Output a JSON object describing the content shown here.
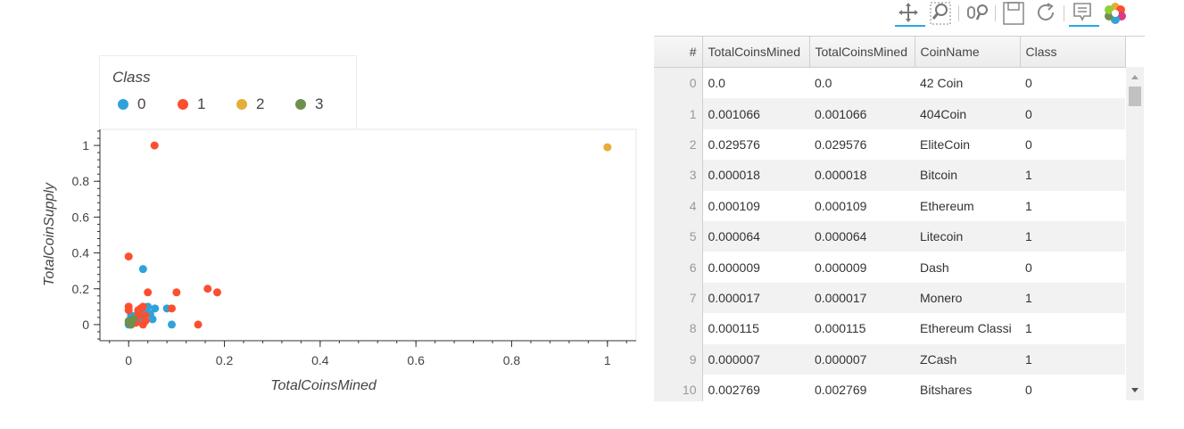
{
  "toolbar": {
    "tools": [
      {
        "name": "pan-tool",
        "icon": "pan-icon",
        "active": true
      },
      {
        "name": "box-zoom-tool",
        "icon": "box-zoom-icon",
        "active": false
      },
      {
        "name": "wheel-zoom-tool",
        "icon": "wheel-zoom-icon",
        "active": false
      },
      {
        "name": "save-tool",
        "icon": "save-icon",
        "active": false
      },
      {
        "name": "reset-tool",
        "icon": "reset-icon",
        "active": false
      },
      {
        "name": "hover-tool",
        "icon": "hover-icon",
        "active": true
      },
      {
        "name": "bokeh-logo",
        "icon": "bokeh-logo-icon",
        "active": false
      }
    ],
    "accent_color": "#26aae1"
  },
  "legend": {
    "title": "Class",
    "items": [
      {
        "label": "0",
        "color": "#30a2da"
      },
      {
        "label": "1",
        "color": "#fc4f30"
      },
      {
        "label": "2",
        "color": "#e5ae38"
      },
      {
        "label": "3",
        "color": "#6d904f"
      }
    ]
  },
  "chart_data": {
    "type": "scatter",
    "xlabel": "TotalCoinsMined",
    "ylabel": "TotalCoinSupply",
    "xlim": [
      -0.06,
      1.06
    ],
    "ylim": [
      -0.09,
      1.09
    ],
    "x_ticks": [
      "0",
      "0.2",
      "0.4",
      "0.6",
      "0.8",
      "1"
    ],
    "y_ticks": [
      "0",
      "0.2",
      "0.4",
      "0.6",
      "0.8",
      "1"
    ],
    "grid": false,
    "legend_position": "top-left",
    "series": [
      {
        "name": "0",
        "color": "#30a2da",
        "points": [
          [
            0,
            0
          ],
          [
            0.001,
            0.001
          ],
          [
            0.03,
            0.03
          ],
          [
            0.03,
            0.31
          ],
          [
            0.005,
            0.05
          ],
          [
            0.015,
            0.05
          ],
          [
            0.02,
            0.03
          ],
          [
            0.035,
            0.09
          ],
          [
            0.04,
            0.1
          ],
          [
            0.045,
            0.06
          ],
          [
            0.05,
            0.03
          ],
          [
            0.055,
            0.09
          ],
          [
            0.08,
            0.09
          ],
          [
            0.09,
            0.0
          ],
          [
            0.025,
            0.08
          ],
          [
            0.01,
            0.02
          ]
        ]
      },
      {
        "name": "1",
        "color": "#fc4f30",
        "points": [
          [
            0.054,
            1.0
          ],
          [
            0,
            0.38
          ],
          [
            0,
            0.1
          ],
          [
            0,
            0.08
          ],
          [
            0.01,
            0.02
          ],
          [
            0.02,
            0.05
          ],
          [
            0.025,
            0.09
          ],
          [
            0.03,
            0.1
          ],
          [
            0.04,
            0.18
          ],
          [
            0.03,
            0.0
          ],
          [
            0.035,
            0.02
          ],
          [
            0.09,
            0.09
          ],
          [
            0.1,
            0.18
          ],
          [
            0.165,
            0.2
          ],
          [
            0.185,
            0.18
          ],
          [
            0.145,
            0.0
          ],
          [
            0.02,
            0.08
          ],
          [
            0.005,
            0.0
          ],
          [
            0.035,
            0.05
          ],
          [
            0.015,
            0.01
          ]
        ]
      },
      {
        "name": "2",
        "color": "#e5ae38",
        "points": [
          [
            1.0,
            0.99
          ]
        ]
      },
      {
        "name": "3",
        "color": "#6d904f",
        "points": [
          [
            0,
            0.01
          ],
          [
            0,
            0.02
          ],
          [
            0.005,
            0.0
          ],
          [
            0.01,
            0.03
          ]
        ]
      }
    ]
  },
  "table": {
    "columns": [
      "#",
      "TotalCoinsMined",
      "TotalCoinsMined",
      "CoinName",
      "Class"
    ],
    "rows": [
      [
        "0",
        "0.0",
        "0.0",
        "42 Coin",
        "0"
      ],
      [
        "1",
        "0.001066",
        "0.001066",
        "404Coin",
        "0"
      ],
      [
        "2",
        "0.029576",
        "0.029576",
        "EliteCoin",
        "0"
      ],
      [
        "3",
        "0.000018",
        "0.000018",
        "Bitcoin",
        "1"
      ],
      [
        "4",
        "0.000109",
        "0.000109",
        "Ethereum",
        "1"
      ],
      [
        "5",
        "0.000064",
        "0.000064",
        "Litecoin",
        "1"
      ],
      [
        "6",
        "0.000009",
        "0.000009",
        "Dash",
        "0"
      ],
      [
        "7",
        "0.000017",
        "0.000017",
        "Monero",
        "1"
      ],
      [
        "8",
        "0.000115",
        "0.000115",
        "Ethereum Classi",
        "1"
      ],
      [
        "9",
        "0.000007",
        "0.000007",
        "ZCash",
        "1"
      ],
      [
        "10",
        "0.002769",
        "0.002769",
        "Bitshares",
        "0"
      ]
    ]
  }
}
